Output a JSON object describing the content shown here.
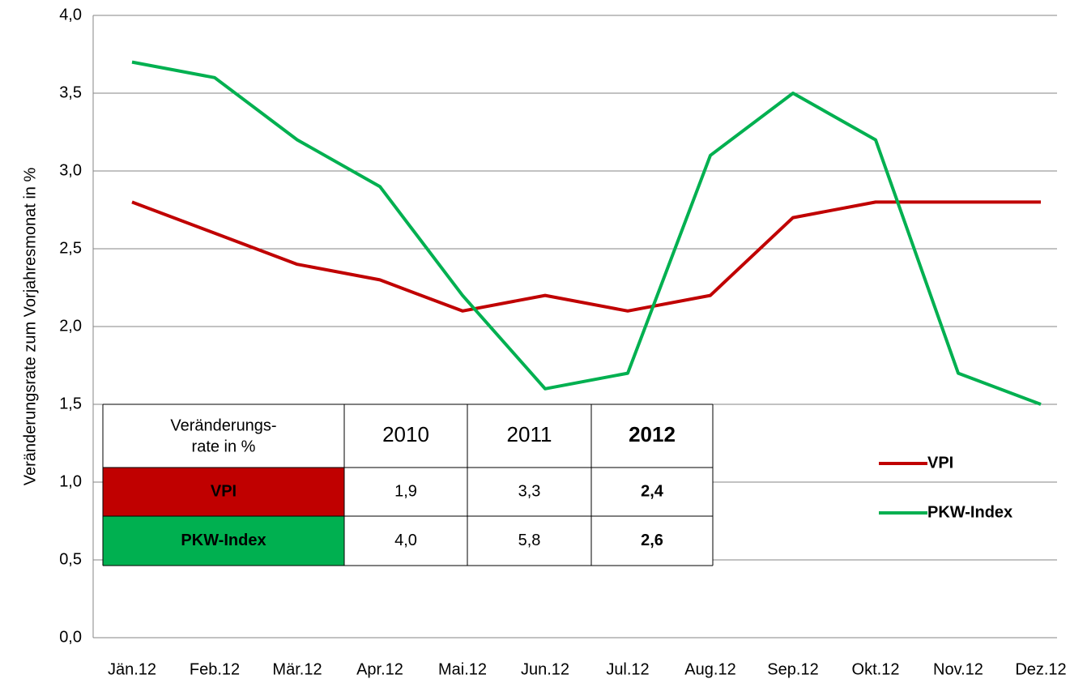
{
  "chart_data": {
    "type": "line",
    "y_label": "Veränderungsrate zum Vorjahresmonat in %",
    "categories": [
      "Jän.12",
      "Feb.12",
      "Mär.12",
      "Apr.12",
      "Mai.12",
      "Jun.12",
      "Jul.12",
      "Aug.12",
      "Sep.12",
      "Okt.12",
      "Nov.12",
      "Dez.12"
    ],
    "series": [
      {
        "name": "VPI",
        "color": "#c00000",
        "values": [
          2.8,
          2.6,
          2.4,
          2.3,
          2.1,
          2.2,
          2.1,
          2.2,
          2.7,
          2.8,
          2.8,
          2.8
        ]
      },
      {
        "name": "PKW-Index",
        "color": "#00b050",
        "values": [
          3.7,
          3.6,
          3.2,
          2.9,
          2.2,
          1.6,
          1.7,
          3.1,
          3.5,
          3.2,
          1.7,
          1.5
        ]
      }
    ],
    "ylim": [
      0,
      4
    ],
    "yticks": [
      {
        "value": 0,
        "label": "0,0"
      },
      {
        "value": 0.5,
        "label": "0,5"
      },
      {
        "value": 1,
        "label": "1,0"
      },
      {
        "value": 1.5,
        "label": "1,5"
      },
      {
        "value": 2,
        "label": "2,0"
      },
      {
        "value": 2.5,
        "label": "2,5"
      },
      {
        "value": 3,
        "label": "3,0"
      },
      {
        "value": 3.5,
        "label": "3,5"
      },
      {
        "value": 4,
        "label": "4,0"
      }
    ],
    "grid": true,
    "legend": "right",
    "table": {
      "columns": [
        [
          "Veränderungs-",
          "rate in %"
        ],
        "2010",
        "2011",
        "2012"
      ],
      "rows": [
        [
          "VPI",
          "1,9",
          "3,3",
          "2,4"
        ],
        [
          "PKW-Index",
          "4,0",
          "5,8",
          "2,6"
        ]
      ]
    }
  }
}
